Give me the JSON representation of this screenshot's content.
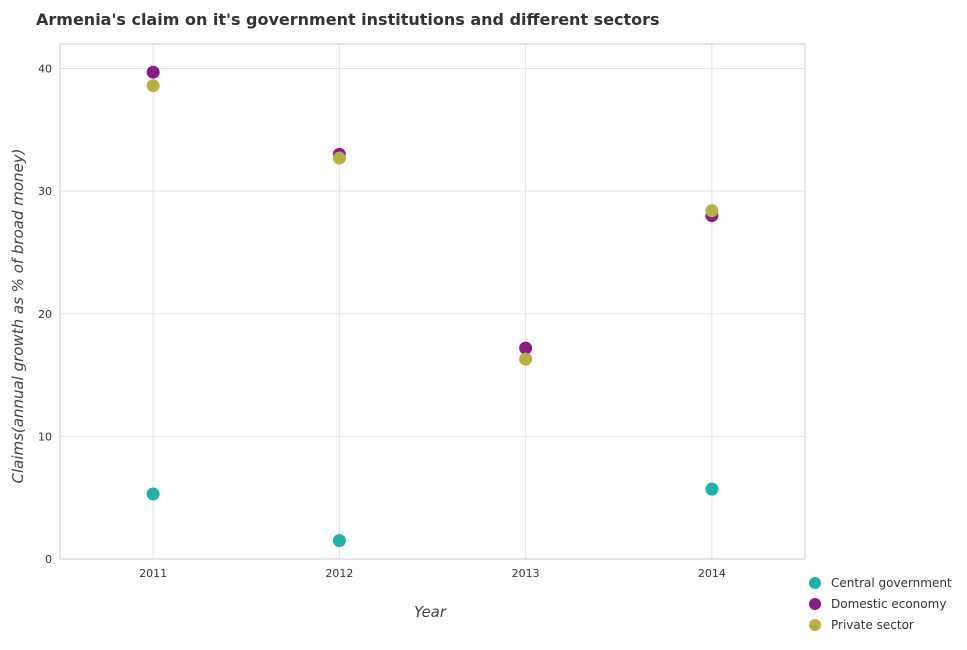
{
  "chart_data": {
    "type": "scatter",
    "title": "Armenia's claim on it's government institutions and different sectors",
    "xlabel": "Year",
    "ylabel": "Claims(annual growth as % of broad money)",
    "categories": [
      "2011",
      "2012",
      "2013",
      "2014"
    ],
    "ylim": [
      0,
      42
    ],
    "yticks": [
      0,
      10,
      20,
      30,
      40
    ],
    "grid": true,
    "legend_position": "bottom-right",
    "series": [
      {
        "name": "Central government",
        "color": "#20b2aa",
        "values": [
          5.3,
          1.5,
          null,
          5.7
        ]
      },
      {
        "name": "Domestic economy",
        "color": "#8b1a8b",
        "values": [
          39.7,
          33.0,
          17.2,
          28.0
        ]
      },
      {
        "name": "Private sector",
        "color": "#b5b040",
        "values": [
          38.6,
          32.7,
          16.3,
          28.4
        ]
      }
    ]
  }
}
